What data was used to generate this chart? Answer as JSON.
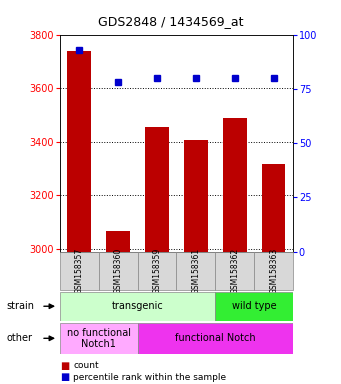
{
  "title": "GDS2848 / 1434569_at",
  "samples": [
    "GSM158357",
    "GSM158360",
    "GSM158359",
    "GSM158361",
    "GSM158362",
    "GSM158363"
  ],
  "counts": [
    3740,
    3065,
    3455,
    3405,
    3490,
    3315
  ],
  "percentiles": [
    93,
    78,
    80,
    80,
    80,
    80
  ],
  "ylim_left": [
    2990,
    3800
  ],
  "ylim_right": [
    0,
    100
  ],
  "yticks_left": [
    3000,
    3200,
    3400,
    3600,
    3800
  ],
  "yticks_right": [
    0,
    25,
    50,
    75,
    100
  ],
  "bar_color": "#bb0000",
  "dot_color": "#0000cc",
  "strain_labels": [
    {
      "label": "transgenic",
      "span": [
        0,
        4
      ],
      "color": "#ccffcc"
    },
    {
      "label": "wild type",
      "span": [
        4,
        6
      ],
      "color": "#33ee33"
    }
  ],
  "other_labels": [
    {
      "label": "no functional\nNotch1",
      "span": [
        0,
        2
      ],
      "color": "#ffaaff"
    },
    {
      "label": "functional Notch",
      "span": [
        2,
        6
      ],
      "color": "#ee33ee"
    }
  ],
  "legend_items": [
    {
      "label": "count",
      "color": "#bb0000"
    },
    {
      "label": "percentile rank within the sample",
      "color": "#0000cc"
    }
  ],
  "xlabels_bg": "#d8d8d8",
  "plot_bg": "#ffffff"
}
